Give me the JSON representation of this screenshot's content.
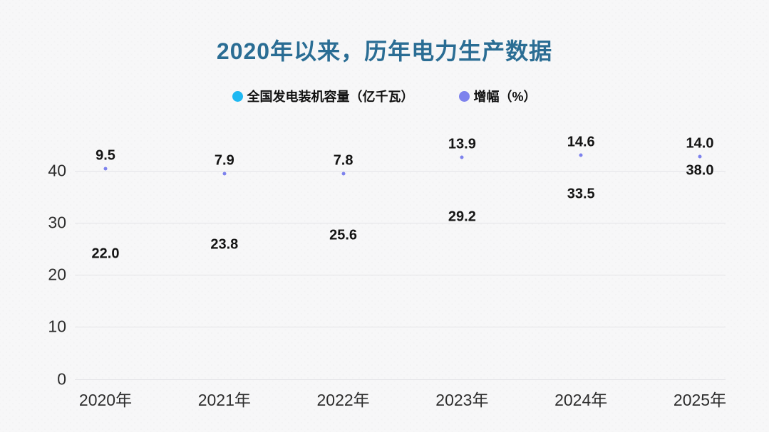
{
  "title": {
    "text": "2020年以来，历年电力生产数据",
    "color": "#2a6d94"
  },
  "legend": {
    "items": [
      {
        "label": "全国发电装机容量（亿千瓦）",
        "color": "#1eb8f2"
      },
      {
        "label": "增幅（%）",
        "color": "#7d82ed"
      }
    ]
  },
  "chart_data": {
    "type": "scatter",
    "title": "2020年以来，历年电力生产数据",
    "categories": [
      "2020年",
      "2021年",
      "2022年",
      "2023年",
      "2024年",
      "2025年"
    ],
    "series": [
      {
        "name": "全国发电装机容量（亿千瓦）",
        "axis": "primary",
        "color": "#1eb8f2",
        "marker_visible": false,
        "values": [
          22.0,
          23.8,
          25.6,
          29.2,
          33.5,
          38.0
        ],
        "labels": [
          "22.0",
          "23.8",
          "25.6",
          "29.2",
          "33.5",
          "38.0"
        ]
      },
      {
        "name": "增幅（%）",
        "axis": "secondary",
        "color": "#7d82ed",
        "marker_visible": true,
        "values": [
          9.5,
          7.9,
          7.8,
          13.9,
          14.6,
          14.0
        ],
        "labels": [
          "9.5",
          "7.9",
          "7.8",
          "13.9",
          "14.6",
          "14.0"
        ]
      }
    ],
    "y_axis": {
      "ticks": [
        "0",
        "10",
        "20",
        "30",
        "40"
      ],
      "range": [
        0,
        40
      ],
      "grid": true
    },
    "secondary_axis": {
      "labels_visible": false
    },
    "legend_position": "top",
    "data_labels": true
  },
  "colors": {
    "gridline": "#e3e3e6",
    "axis_text": "#2e2e2e",
    "data_label": "#141414"
  }
}
